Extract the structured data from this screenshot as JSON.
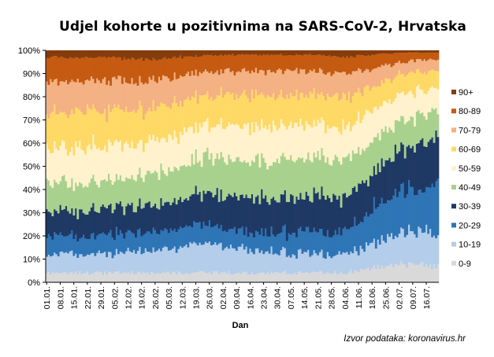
{
  "chart_data": {
    "type": "area",
    "stacked": true,
    "normalized": true,
    "title": "Udjel kohorte  u pozitivnima  na SARS-CoV-2, Hrvatska",
    "xlabel": "Dan",
    "ylabel": "",
    "source": "Izvor podataka: koronavirus.hr",
    "ylim": [
      0,
      100
    ],
    "yticks": [
      "0%",
      "10%",
      "20%",
      "30%",
      "40%",
      "50%",
      "60%",
      "70%",
      "80%",
      "90%",
      "100%"
    ],
    "grid": false,
    "legend_position": "right",
    "x_ticks": [
      "01.01.",
      "08.01.",
      "15.01.",
      "22.01.",
      "29.01.",
      "05.02.",
      "12.02.",
      "19.02.",
      "26.02.",
      "05.03.",
      "12.03.",
      "19.03.",
      "26.03.",
      "02.04.",
      "09.04.",
      "16.04.",
      "23.04.",
      "30.04.",
      "07.05.",
      "14.05.",
      "21.05.",
      "28.05.",
      "04.06.",
      "11.06.",
      "18.06.",
      "25.06.",
      "02.07.",
      "09.07.",
      "16.07."
    ],
    "series": [
      {
        "name": "0-9",
        "color": "#d9d9d9",
        "anchors": [
          [
            0,
            4
          ],
          [
            28,
            4
          ],
          [
            56,
            4
          ],
          [
            84,
            4
          ],
          [
            112,
            4
          ],
          [
            140,
            4
          ],
          [
            154,
            4
          ],
          [
            168,
            6
          ],
          [
            182,
            8
          ],
          [
            196,
            7
          ],
          [
            203,
            7
          ]
        ]
      },
      {
        "name": "10-19",
        "color": "#b4cdea",
        "anchors": [
          [
            0,
            8
          ],
          [
            28,
            8
          ],
          [
            56,
            10
          ],
          [
            84,
            12
          ],
          [
            112,
            10
          ],
          [
            140,
            8
          ],
          [
            154,
            8
          ],
          [
            168,
            10
          ],
          [
            182,
            14
          ],
          [
            196,
            14
          ],
          [
            203,
            12
          ]
        ]
      },
      {
        "name": "20-29",
        "color": "#2e75b6",
        "anchors": [
          [
            0,
            8
          ],
          [
            28,
            8
          ],
          [
            56,
            8
          ],
          [
            84,
            8
          ],
          [
            112,
            8
          ],
          [
            140,
            9
          ],
          [
            154,
            10
          ],
          [
            168,
            15
          ],
          [
            182,
            18
          ],
          [
            196,
            20
          ],
          [
            203,
            22
          ]
        ]
      },
      {
        "name": "30-39",
        "color": "#1f3864",
        "anchors": [
          [
            0,
            11
          ],
          [
            28,
            11
          ],
          [
            56,
            12
          ],
          [
            84,
            14
          ],
          [
            112,
            15
          ],
          [
            140,
            16
          ],
          [
            154,
            15
          ],
          [
            168,
            16
          ],
          [
            182,
            17
          ],
          [
            196,
            20
          ],
          [
            203,
            22
          ]
        ]
      },
      {
        "name": "40-49",
        "color": "#a9d18e",
        "anchors": [
          [
            0,
            13
          ],
          [
            28,
            12
          ],
          [
            56,
            13
          ],
          [
            84,
            16
          ],
          [
            112,
            16
          ],
          [
            140,
            16
          ],
          [
            154,
            16
          ],
          [
            168,
            14
          ],
          [
            182,
            13
          ],
          [
            196,
            12
          ],
          [
            203,
            11
          ]
        ]
      },
      {
        "name": "50-59",
        "color": "#fff2cc",
        "anchors": [
          [
            0,
            15
          ],
          [
            28,
            15
          ],
          [
            56,
            14
          ],
          [
            84,
            14
          ],
          [
            112,
            15
          ],
          [
            140,
            14
          ],
          [
            154,
            14
          ],
          [
            168,
            13
          ],
          [
            182,
            11
          ],
          [
            196,
            10
          ],
          [
            203,
            10
          ]
        ]
      },
      {
        "name": "60-69",
        "color": "#ffd966",
        "anchors": [
          [
            0,
            15
          ],
          [
            28,
            15
          ],
          [
            56,
            14
          ],
          [
            84,
            13
          ],
          [
            112,
            13
          ],
          [
            140,
            13
          ],
          [
            154,
            13
          ],
          [
            168,
            10
          ],
          [
            182,
            9
          ],
          [
            196,
            8
          ],
          [
            203,
            8
          ]
        ]
      },
      {
        "name": "70-79",
        "color": "#f4b183",
        "anchors": [
          [
            0,
            13
          ],
          [
            28,
            13
          ],
          [
            56,
            12
          ],
          [
            84,
            10
          ],
          [
            112,
            10
          ],
          [
            140,
            10
          ],
          [
            154,
            10
          ],
          [
            168,
            8
          ],
          [
            182,
            5
          ],
          [
            196,
            5
          ],
          [
            203,
            5
          ]
        ]
      },
      {
        "name": "80-89",
        "color": "#c55a11",
        "anchors": [
          [
            0,
            10
          ],
          [
            28,
            10
          ],
          [
            56,
            9
          ],
          [
            84,
            7
          ],
          [
            112,
            7
          ],
          [
            140,
            7
          ],
          [
            154,
            7
          ],
          [
            168,
            6
          ],
          [
            182,
            4
          ],
          [
            196,
            3
          ],
          [
            203,
            3
          ]
        ]
      },
      {
        "name": "90+",
        "color": "#843c0c",
        "anchors": [
          [
            0,
            3
          ],
          [
            28,
            3
          ],
          [
            56,
            4
          ],
          [
            84,
            2
          ],
          [
            112,
            2
          ],
          [
            140,
            2
          ],
          [
            154,
            3
          ],
          [
            168,
            2
          ],
          [
            182,
            1
          ],
          [
            196,
            1
          ],
          [
            203,
            1
          ]
        ]
      }
    ]
  }
}
